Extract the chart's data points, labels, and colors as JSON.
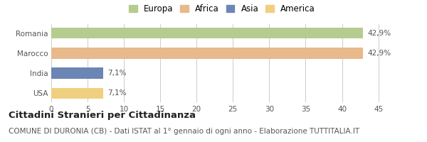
{
  "categories": [
    "Romania",
    "Marocco",
    "India",
    "USA"
  ],
  "values": [
    42.9,
    42.9,
    7.1,
    7.1
  ],
  "bar_colors": [
    "#b5cc8e",
    "#e8b98a",
    "#6b85b5",
    "#f0d080"
  ],
  "labels": [
    "42,9%",
    "42,9%",
    "7,1%",
    "7,1%"
  ],
  "legend": [
    "Europa",
    "Africa",
    "Asia",
    "America"
  ],
  "legend_colors": [
    "#b5cc8e",
    "#e8b98a",
    "#6b85b5",
    "#f0d080"
  ],
  "xlim": [
    0,
    47
  ],
  "xticks": [
    0,
    5,
    10,
    15,
    20,
    25,
    30,
    35,
    40,
    45
  ],
  "title_bold": "Cittadini Stranieri per Cittadinanza",
  "subtitle": "COMUNE DI DURONIA (CB) - Dati ISTAT al 1° gennaio di ogni anno - Elaborazione TUTTITALIA.IT",
  "bg_color": "#ffffff",
  "grid_color": "#cccccc",
  "bar_height": 0.55,
  "label_fontsize": 7.5,
  "tick_fontsize": 7.5,
  "legend_fontsize": 8.5,
  "title_fontsize": 9.5,
  "subtitle_fontsize": 7.5
}
